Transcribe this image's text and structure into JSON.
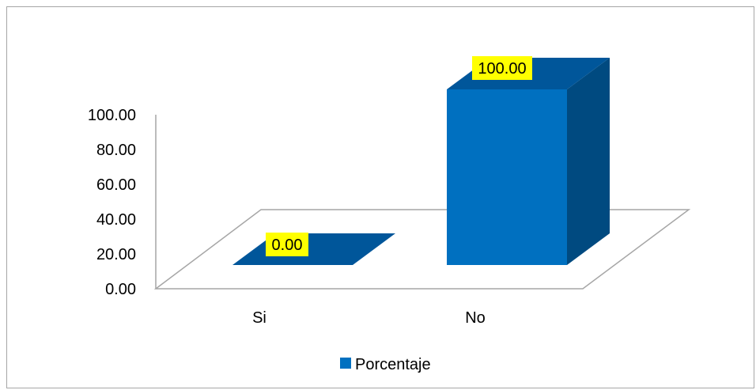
{
  "chart_data": {
    "type": "bar",
    "categories": [
      "Si",
      "No"
    ],
    "series": [
      {
        "name": "Porcentaje",
        "values": [
          0.0,
          100.0
        ]
      }
    ],
    "value_labels": [
      "0.00",
      "100.00"
    ],
    "yticks": [
      "0.00",
      "20.00",
      "40.00",
      "60.00",
      "80.00",
      "100.00"
    ],
    "ylim": [
      0,
      100
    ],
    "title": "",
    "xlabel": "",
    "ylabel": "",
    "legend": {
      "position": "bottom",
      "entries": [
        "Porcentaje"
      ]
    },
    "grid": false,
    "style": "3d",
    "colors": {
      "bar_front": "#0070c0",
      "bar_side": "#004a80",
      "bar_top": "#00569a",
      "data_label_bg": "#ffff00",
      "axis": "#a6a6a6"
    }
  }
}
